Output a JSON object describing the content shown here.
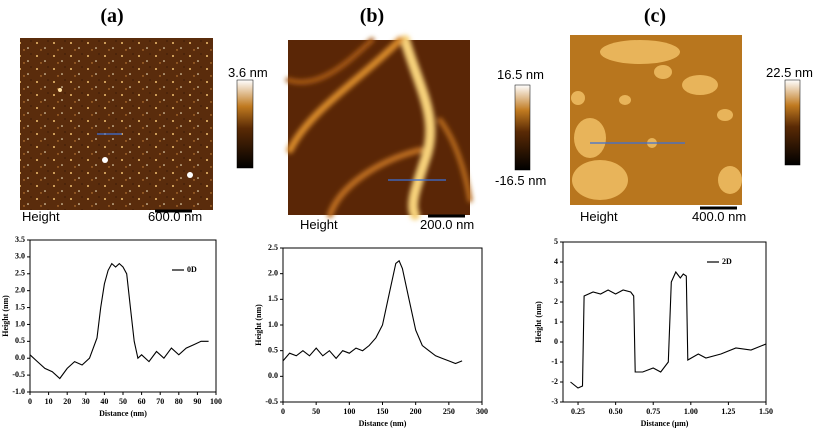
{
  "panels": [
    {
      "label": "(a)",
      "height_label": "Height",
      "scale_bar": "600.0 nm",
      "colorbar_labels": [
        "3.6 nm"
      ]
    },
    {
      "label": "(b)",
      "height_label": "Height",
      "scale_bar": "200.0 nm",
      "colorbar_labels": [
        "16.5 nm",
        "-16.5 nm"
      ]
    },
    {
      "label": "(c)",
      "height_label": "Height",
      "scale_bar": "400.0 nm",
      "colorbar_labels": [
        "22.5 nm"
      ]
    }
  ],
  "chart_data": [
    {
      "type": "line",
      "xlabel": "Distance (nm)",
      "ylabel": "Height (nm)",
      "xlim": [
        0,
        100
      ],
      "xticks": [
        0,
        10,
        20,
        30,
        40,
        50,
        60,
        70,
        80,
        90,
        100
      ],
      "ylim": [
        -1,
        3.5
      ],
      "yticks": [
        {
          "value": -1,
          "label": "-1.0"
        },
        -0.5,
        {
          "value": 0,
          "label": "0.0"
        },
        0.5,
        {
          "value": 1,
          "label": "1.0"
        },
        1.5,
        {
          "value": 2,
          "label": "2.0"
        },
        2.5,
        {
          "value": 3,
          "label": "3.0"
        },
        3.5
      ],
      "series": [
        {
          "name": "0D",
          "color": "#000000",
          "x": [
            0,
            4,
            8,
            12,
            16,
            20,
            24,
            28,
            32,
            36,
            38,
            40,
            42,
            44,
            46,
            48,
            50,
            52,
            54,
            56,
            58,
            60,
            64,
            68,
            72,
            76,
            80,
            84,
            88,
            92,
            96
          ],
          "values": [
            0.1,
            -0.1,
            -0.3,
            -0.4,
            -0.6,
            -0.3,
            -0.1,
            -0.2,
            0.0,
            0.6,
            1.5,
            2.2,
            2.6,
            2.8,
            2.7,
            2.8,
            2.7,
            2.5,
            1.5,
            0.5,
            0.0,
            0.1,
            -0.1,
            0.2,
            0.0,
            0.3,
            0.1,
            0.3,
            0.4,
            0.5,
            0.5
          ]
        }
      ]
    },
    {
      "type": "line",
      "xlabel": "Distance (nm)",
      "ylabel": "Height (nm)",
      "xlim": [
        0,
        300
      ],
      "xticks": [
        0,
        50,
        100,
        150,
        200,
        250,
        300
      ],
      "ylim": [
        -0.5,
        2.5
      ],
      "yticks": [
        -0.5,
        {
          "value": 0,
          "label": "0.0"
        },
        0.5,
        {
          "value": 1,
          "label": "1.0"
        },
        1.5,
        {
          "value": 2,
          "label": "2.0"
        },
        2.5
      ],
      "series": [
        {
          "color": "#000000",
          "x": [
            0,
            10,
            20,
            30,
            40,
            50,
            60,
            70,
            80,
            90,
            100,
            110,
            120,
            130,
            140,
            150,
            160,
            170,
            175,
            180,
            190,
            200,
            210,
            220,
            230,
            240,
            250,
            260,
            270
          ],
          "values": [
            0.3,
            0.45,
            0.4,
            0.5,
            0.4,
            0.55,
            0.4,
            0.5,
            0.35,
            0.5,
            0.45,
            0.55,
            0.5,
            0.6,
            0.75,
            1.0,
            1.6,
            2.2,
            2.25,
            2.1,
            1.5,
            0.9,
            0.6,
            0.5,
            0.4,
            0.35,
            0.3,
            0.25,
            0.3
          ]
        }
      ]
    },
    {
      "type": "line",
      "xlabel": "Distance (μm)",
      "ylabel": "Height (nm)",
      "xlim": [
        0.15,
        1.5
      ],
      "xticks": [
        {
          "value": 0.25,
          "label": "0.25"
        },
        {
          "value": 0.5,
          "label": "0.50"
        },
        {
          "value": 0.75,
          "label": "0.75"
        },
        {
          "value": 1,
          "label": "1.00"
        },
        {
          "value": 1.25,
          "label": "1.25"
        },
        {
          "value": 1.5,
          "label": "1.50"
        }
      ],
      "ylim": [
        -3,
        5
      ],
      "yticks": [
        -3,
        -2,
        -1,
        0,
        1,
        2,
        3,
        4,
        5
      ],
      "series": [
        {
          "name": "2D",
          "color": "#000000",
          "x": [
            0.2,
            0.25,
            0.28,
            0.29,
            0.35,
            0.4,
            0.45,
            0.5,
            0.55,
            0.6,
            0.62,
            0.63,
            0.68,
            0.75,
            0.8,
            0.85,
            0.87,
            0.9,
            0.93,
            0.95,
            0.97,
            0.98,
            1.05,
            1.1,
            1.2,
            1.3,
            1.4,
            1.5
          ],
          "values": [
            -2.0,
            -2.3,
            -2.2,
            2.3,
            2.5,
            2.4,
            2.6,
            2.4,
            2.6,
            2.5,
            2.3,
            -1.5,
            -1.5,
            -1.3,
            -1.5,
            -1.0,
            3.0,
            3.5,
            3.2,
            3.4,
            3.3,
            -0.9,
            -0.6,
            -0.8,
            -0.6,
            -0.3,
            -0.4,
            -0.1
          ]
        }
      ]
    }
  ]
}
